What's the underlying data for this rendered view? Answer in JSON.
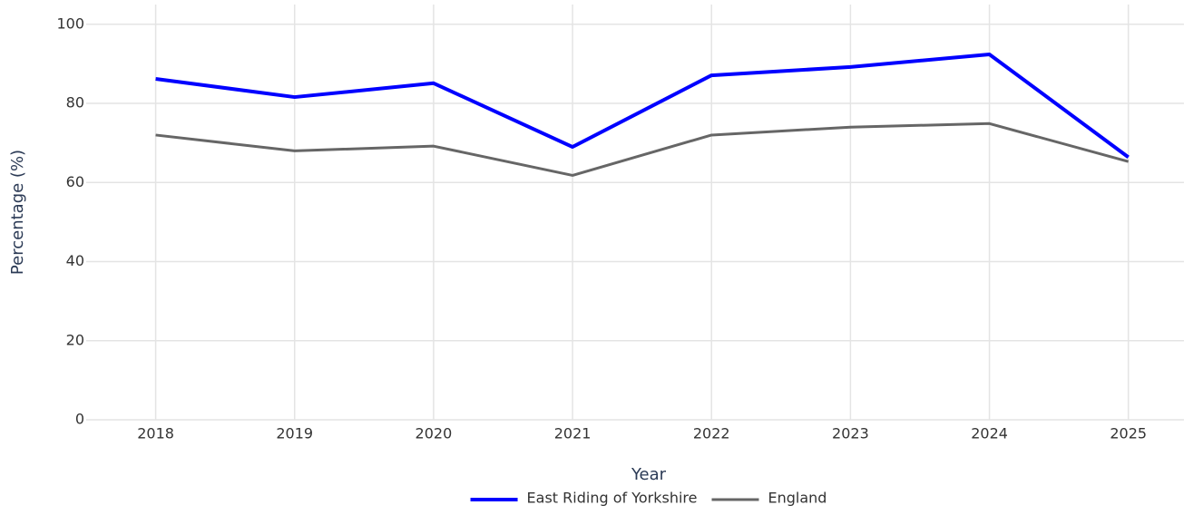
{
  "chart_data": {
    "type": "line",
    "x": [
      2018,
      2019,
      2020,
      2021,
      2022,
      2023,
      2024,
      2025
    ],
    "series": [
      {
        "name": "East Riding of Yorkshire",
        "color": "#0000ff",
        "values": [
          86.2,
          81.6,
          85.1,
          69.0,
          87.1,
          89.2,
          92.4,
          66.4
        ]
      },
      {
        "name": "England",
        "color": "#666666",
        "values": [
          72.0,
          68.0,
          69.2,
          61.8,
          72.0,
          74.0,
          74.9,
          65.3
        ]
      }
    ],
    "xlabel": "Year",
    "ylabel": "Percentage (%)",
    "xlim": [
      2017.5,
      2025.4
    ],
    "xticks": [
      2018,
      2019,
      2020,
      2021,
      2022,
      2023,
      2024,
      2025
    ],
    "ylim": [
      0,
      105
    ],
    "yticks": [
      0,
      20,
      40,
      60,
      80,
      100
    ],
    "grid": true,
    "legend": "bottom"
  }
}
